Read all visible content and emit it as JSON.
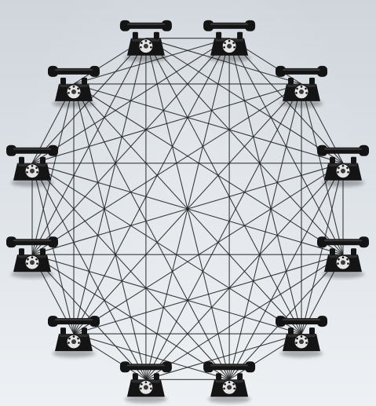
{
  "diagram": {
    "node_icon": "telephone-icon",
    "node_count": 12,
    "topology": "full-mesh",
    "colors": {
      "line": "#1e1e1e",
      "phone_body": "#141414",
      "phone_dial": "#e4e4e4",
      "background_top": "#cfd5db",
      "background_bottom": "#eef1f4"
    }
  }
}
